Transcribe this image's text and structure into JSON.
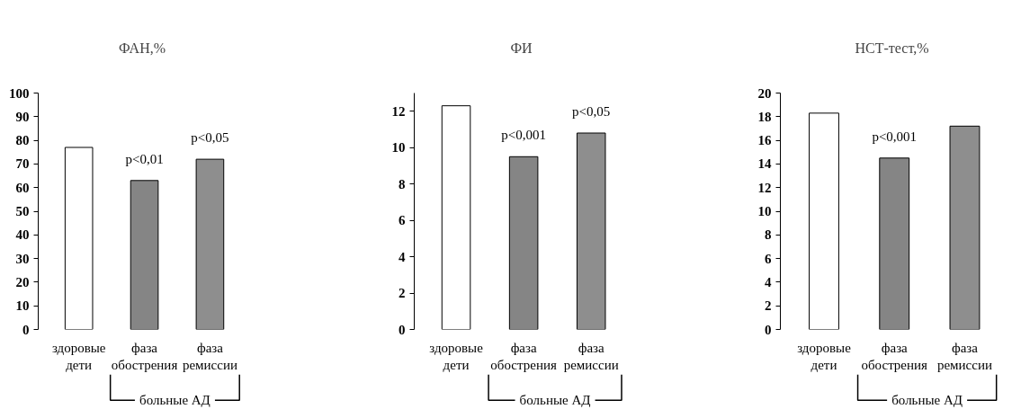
{
  "chart_data": [
    {
      "type": "bar",
      "title": "ФАН,%",
      "categories": [
        "здоровые дети",
        "фаза обострения",
        "фаза ремиссии"
      ],
      "values": [
        77,
        63,
        72
      ],
      "colors": [
        "#ffffff",
        "#858585",
        "#8e8e8e"
      ],
      "ylim": [
        0,
        100
      ],
      "yticks": [
        0,
        10,
        20,
        30,
        40,
        50,
        60,
        70,
        80,
        90,
        100
      ],
      "annotations": [
        {
          "text": "p<0,01",
          "x": "фаза обострения",
          "y": 63
        },
        {
          "text": "p<0,05",
          "x": "фаза ремиссии",
          "y": 72
        },
        "больные АД"
      ]
    },
    {
      "type": "bar",
      "title": "ФИ",
      "categories": [
        "здоровые дети",
        "фаза обострения",
        "фаза ремиссии"
      ],
      "values": [
        12.3,
        9.5,
        10.8
      ],
      "colors": [
        "#ffffff",
        "#858585",
        "#8e8e8e"
      ],
      "ylim": [
        0,
        13
      ],
      "yticks": [
        0,
        2,
        4,
        6,
        8,
        10,
        12
      ],
      "annotations": [
        {
          "text": "p<0,001",
          "x": "фаза обострения",
          "y": 9.5
        },
        {
          "text": "p<0,05",
          "x": "фаза ремиссии",
          "y": 10.8
        },
        "больные АД"
      ]
    },
    {
      "type": "bar",
      "title": "НСТ-тест,%",
      "categories": [
        "здоровые дети",
        "фаза обострения",
        "фаза ремиссии"
      ],
      "values": [
        18.3,
        14.5,
        17.2
      ],
      "colors": [
        "#ffffff",
        "#858585",
        "#8e8e8e"
      ],
      "ylim": [
        0,
        20
      ],
      "yticks": [
        0,
        2,
        4,
        6,
        8,
        10,
        12,
        14,
        16,
        18,
        20
      ],
      "annotations": [
        {
          "text": "p<0,001",
          "x": "фаза обострения",
          "y": 14.5
        },
        "больные АД"
      ]
    }
  ]
}
